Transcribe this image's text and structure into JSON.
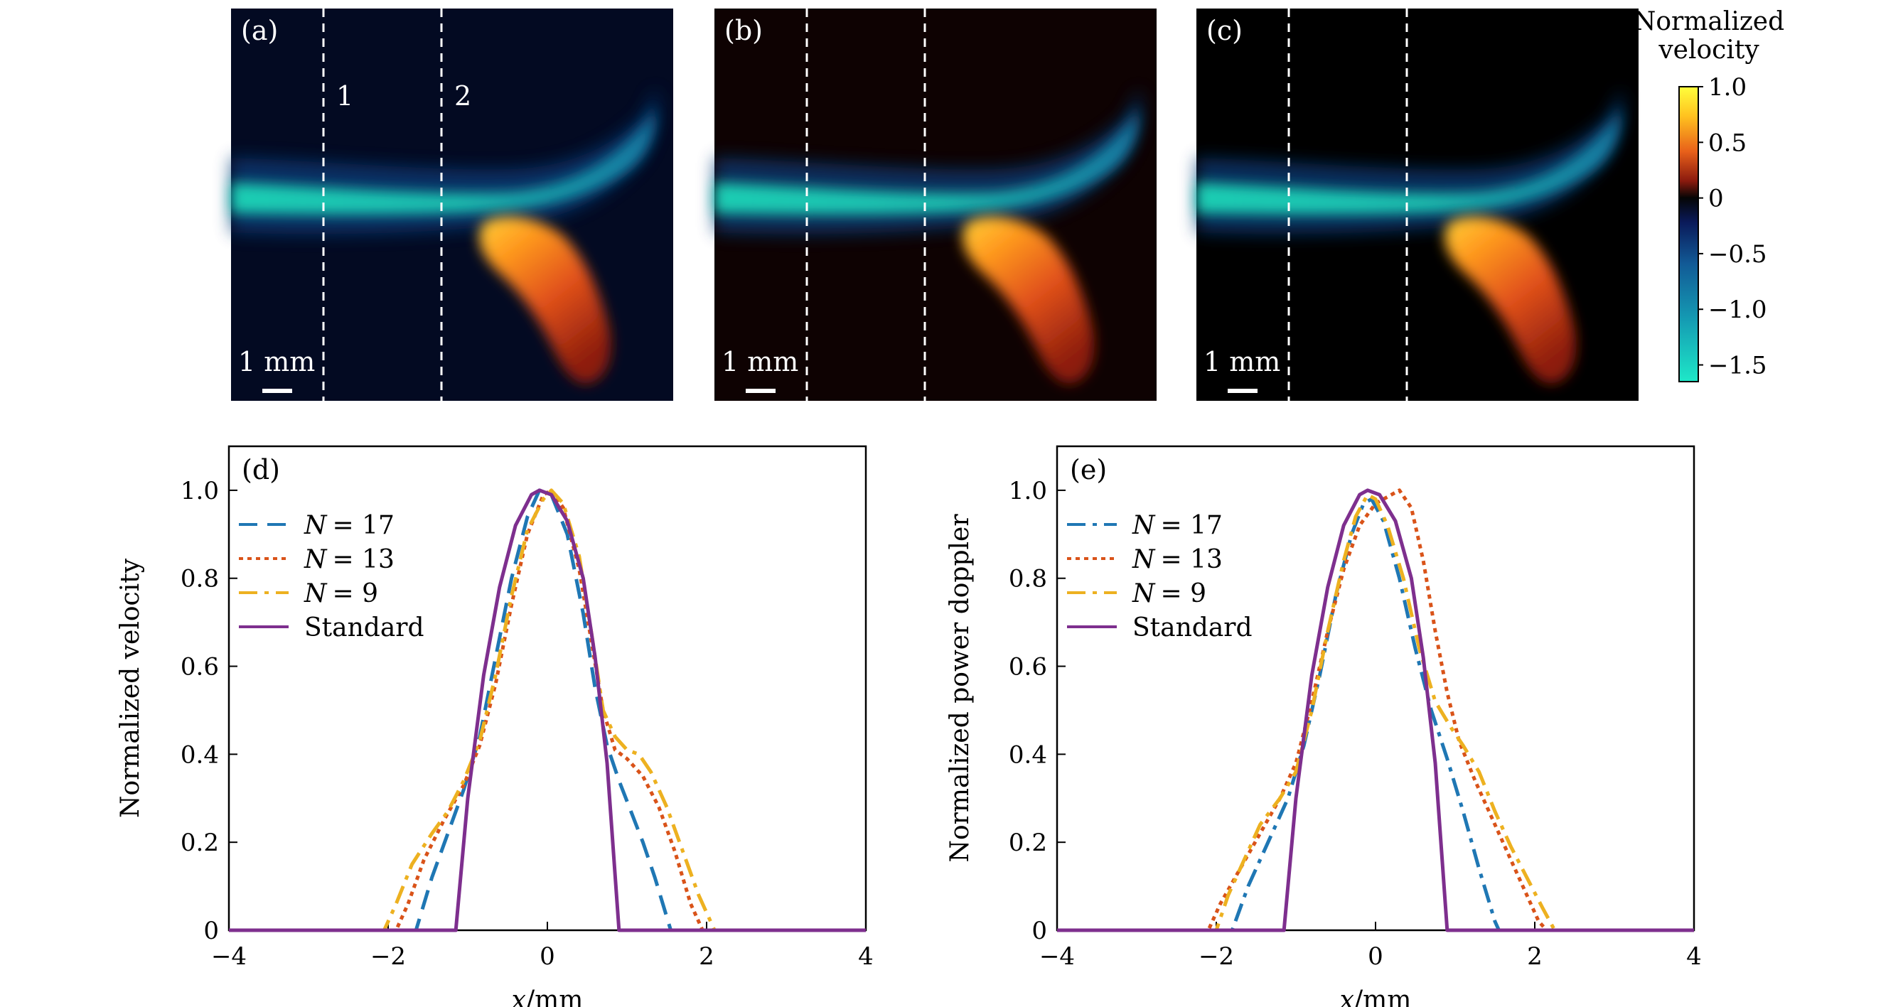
{
  "images": [
    {
      "label": "(a)",
      "bg": "#030a22",
      "line_labels": [
        "1",
        "2"
      ],
      "scale_label": "1 mm"
    },
    {
      "label": "(b)",
      "bg": "#0e0202",
      "line_labels": [],
      "scale_label": "1 mm"
    },
    {
      "label": "(c)",
      "bg": "#000000",
      "line_labels": [],
      "scale_label": "1 mm"
    }
  ],
  "colorbar": {
    "title_lines": [
      "Normalized",
      "velocity"
    ],
    "ticks": [
      "1.0",
      "0.5",
      "0",
      "−0.5",
      "−1.0",
      "−1.5"
    ],
    "tick_values": [
      1.0,
      0.5,
      0,
      -0.5,
      -1.0,
      -1.5
    ],
    "range": [
      -1.65,
      1.0
    ]
  },
  "colors": {
    "n17": "#1f77b4",
    "n13": "#d95319",
    "n9": "#edb120",
    "standard": "#7e2f8e"
  },
  "chart_data": [
    {
      "type": "line",
      "panel_label": "(d)",
      "xlabel_var": "x",
      "xlabel_unit": "/mm",
      "ylabel": "Normalized velocity",
      "xlim": [
        -4,
        4
      ],
      "ylim": [
        0,
        1.1
      ],
      "xticks": [
        -4,
        -2,
        0,
        2,
        4
      ],
      "yticks": [
        0,
        0.2,
        0.4,
        0.6,
        0.8,
        1.0
      ],
      "xtick_labels": [
        "−4",
        "−2",
        "0",
        "2",
        "4"
      ],
      "ytick_labels": [
        "0",
        "0.2",
        "0.4",
        "0.6",
        "0.8",
        "1.0"
      ],
      "legend_position": "top-left",
      "series": [
        {
          "name": "N = 17",
          "legend_var": "N",
          "legend_val": "= 17",
          "color_key": "n17",
          "style": "dash",
          "points": [
            [
              -4,
              0
            ],
            [
              -1.65,
              0
            ],
            [
              -1.45,
              0.12
            ],
            [
              -1.25,
              0.22
            ],
            [
              -1.05,
              0.32
            ],
            [
              -0.85,
              0.44
            ],
            [
              -0.65,
              0.62
            ],
            [
              -0.45,
              0.8
            ],
            [
              -0.25,
              0.94
            ],
            [
              -0.1,
              1.0
            ],
            [
              0.05,
              0.99
            ],
            [
              0.25,
              0.9
            ],
            [
              0.45,
              0.72
            ],
            [
              0.6,
              0.55
            ],
            [
              0.75,
              0.42
            ],
            [
              0.9,
              0.34
            ],
            [
              1.05,
              0.27
            ],
            [
              1.2,
              0.2
            ],
            [
              1.35,
              0.12
            ],
            [
              1.55,
              0
            ],
            [
              4,
              0
            ]
          ]
        },
        {
          "name": "N = 13",
          "legend_var": "N",
          "legend_val": "= 13",
          "color_key": "n13",
          "style": "dot",
          "points": [
            [
              -4,
              0
            ],
            [
              -1.9,
              0
            ],
            [
              -1.75,
              0.06
            ],
            [
              -1.55,
              0.16
            ],
            [
              -1.3,
              0.25
            ],
            [
              -1.05,
              0.33
            ],
            [
              -0.85,
              0.42
            ],
            [
              -0.65,
              0.56
            ],
            [
              -0.45,
              0.74
            ],
            [
              -0.25,
              0.9
            ],
            [
              -0.05,
              0.99
            ],
            [
              0.05,
              1.0
            ],
            [
              0.2,
              0.96
            ],
            [
              0.4,
              0.82
            ],
            [
              0.55,
              0.66
            ],
            [
              0.7,
              0.5
            ],
            [
              0.85,
              0.41
            ],
            [
              1.0,
              0.39
            ],
            [
              1.2,
              0.35
            ],
            [
              1.4,
              0.28
            ],
            [
              1.6,
              0.18
            ],
            [
              1.8,
              0.06
            ],
            [
              1.95,
              0
            ],
            [
              4,
              0
            ]
          ]
        },
        {
          "name": "N = 9",
          "legend_var": "N",
          "legend_val": "= 9",
          "color_key": "n9",
          "style": "dashdot",
          "points": [
            [
              -4,
              0
            ],
            [
              -2.05,
              0
            ],
            [
              -1.9,
              0.06
            ],
            [
              -1.7,
              0.15
            ],
            [
              -1.45,
              0.22
            ],
            [
              -1.25,
              0.27
            ],
            [
              -1.05,
              0.34
            ],
            [
              -0.85,
              0.43
            ],
            [
              -0.65,
              0.58
            ],
            [
              -0.45,
              0.76
            ],
            [
              -0.25,
              0.91
            ],
            [
              -0.05,
              0.98
            ],
            [
              0.05,
              1.0
            ],
            [
              0.2,
              0.97
            ],
            [
              0.4,
              0.85
            ],
            [
              0.55,
              0.68
            ],
            [
              0.7,
              0.5
            ],
            [
              0.85,
              0.44
            ],
            [
              1.0,
              0.41
            ],
            [
              1.15,
              0.4
            ],
            [
              1.3,
              0.36
            ],
            [
              1.5,
              0.28
            ],
            [
              1.7,
              0.18
            ],
            [
              1.9,
              0.08
            ],
            [
              2.1,
              0
            ],
            [
              4,
              0
            ]
          ]
        },
        {
          "name": "Standard",
          "color_key": "standard",
          "style": "solid",
          "points": [
            [
              -4,
              0
            ],
            [
              -1.15,
              0
            ],
            [
              -1.0,
              0.3
            ],
            [
              -0.8,
              0.58
            ],
            [
              -0.6,
              0.78
            ],
            [
              -0.4,
              0.92
            ],
            [
              -0.2,
              0.99
            ],
            [
              -0.1,
              1.0
            ],
            [
              0.05,
              0.99
            ],
            [
              0.25,
              0.93
            ],
            [
              0.45,
              0.8
            ],
            [
              0.6,
              0.62
            ],
            [
              0.75,
              0.38
            ],
            [
              0.9,
              0
            ],
            [
              4,
              0
            ]
          ]
        }
      ]
    },
    {
      "type": "line",
      "panel_label": "(e)",
      "xlabel_var": "x",
      "xlabel_unit": "/mm",
      "ylabel": "Normalized power doppler",
      "xlim": [
        -4,
        4
      ],
      "ylim": [
        0,
        1.1
      ],
      "xticks": [
        -4,
        -2,
        0,
        2,
        4
      ],
      "yticks": [
        0,
        0.2,
        0.4,
        0.6,
        0.8,
        1.0
      ],
      "xtick_labels": [
        "−4",
        "−2",
        "0",
        "2",
        "4"
      ],
      "ytick_labels": [
        "0",
        "0.2",
        "0.4",
        "0.6",
        "0.8",
        "1.0"
      ],
      "legend_position": "top-left",
      "series": [
        {
          "name": "N = 17",
          "legend_var": "N",
          "legend_val": "= 17",
          "color_key": "n17",
          "style": "dashdot",
          "points": [
            [
              -4,
              0
            ],
            [
              -1.8,
              0
            ],
            [
              -1.6,
              0.1
            ],
            [
              -1.35,
              0.2
            ],
            [
              -1.1,
              0.3
            ],
            [
              -0.9,
              0.42
            ],
            [
              -0.7,
              0.58
            ],
            [
              -0.5,
              0.76
            ],
            [
              -0.3,
              0.9
            ],
            [
              -0.15,
              0.97
            ],
            [
              -0.05,
              0.98
            ],
            [
              0.1,
              0.93
            ],
            [
              0.3,
              0.8
            ],
            [
              0.5,
              0.64
            ],
            [
              0.7,
              0.5
            ],
            [
              0.9,
              0.39
            ],
            [
              1.1,
              0.27
            ],
            [
              1.3,
              0.14
            ],
            [
              1.5,
              0.02
            ],
            [
              1.55,
              0
            ],
            [
              4,
              0
            ]
          ]
        },
        {
          "name": "N = 13",
          "legend_var": "N",
          "legend_val": "= 13",
          "color_key": "n13",
          "style": "dot",
          "points": [
            [
              -4,
              0
            ],
            [
              -2.1,
              0
            ],
            [
              -1.95,
              0.06
            ],
            [
              -1.7,
              0.14
            ],
            [
              -1.45,
              0.22
            ],
            [
              -1.2,
              0.3
            ],
            [
              -1.0,
              0.38
            ],
            [
              -0.8,
              0.52
            ],
            [
              -0.6,
              0.68
            ],
            [
              -0.4,
              0.82
            ],
            [
              -0.2,
              0.92
            ],
            [
              0.0,
              0.97
            ],
            [
              0.2,
              0.99
            ],
            [
              0.3,
              1.0
            ],
            [
              0.45,
              0.96
            ],
            [
              0.6,
              0.84
            ],
            [
              0.75,
              0.68
            ],
            [
              0.9,
              0.54
            ],
            [
              1.05,
              0.43
            ],
            [
              1.25,
              0.34
            ],
            [
              1.45,
              0.26
            ],
            [
              1.65,
              0.18
            ],
            [
              1.85,
              0.1
            ],
            [
              2.05,
              0.02
            ],
            [
              2.15,
              0
            ],
            [
              4,
              0
            ]
          ]
        },
        {
          "name": "N = 9",
          "legend_var": "N",
          "legend_val": "= 9",
          "color_key": "n9",
          "style": "dashdot",
          "points": [
            [
              -4,
              0
            ],
            [
              -2.0,
              0
            ],
            [
              -1.85,
              0.08
            ],
            [
              -1.65,
              0.16
            ],
            [
              -1.45,
              0.24
            ],
            [
              -1.2,
              0.3
            ],
            [
              -1.0,
              0.36
            ],
            [
              -0.8,
              0.5
            ],
            [
              -0.6,
              0.68
            ],
            [
              -0.4,
              0.84
            ],
            [
              -0.25,
              0.94
            ],
            [
              -0.1,
              0.99
            ],
            [
              0.0,
              0.98
            ],
            [
              0.15,
              0.92
            ],
            [
              0.35,
              0.8
            ],
            [
              0.55,
              0.64
            ],
            [
              0.75,
              0.52
            ],
            [
              0.95,
              0.46
            ],
            [
              1.1,
              0.42
            ],
            [
              1.3,
              0.36
            ],
            [
              1.5,
              0.27
            ],
            [
              1.7,
              0.19
            ],
            [
              1.9,
              0.12
            ],
            [
              2.1,
              0.05
            ],
            [
              2.25,
              0
            ],
            [
              4,
              0
            ]
          ]
        },
        {
          "name": "Standard",
          "color_key": "standard",
          "style": "solid",
          "points": [
            [
              -4,
              0
            ],
            [
              -1.15,
              0
            ],
            [
              -1.0,
              0.3
            ],
            [
              -0.8,
              0.58
            ],
            [
              -0.6,
              0.78
            ],
            [
              -0.4,
              0.92
            ],
            [
              -0.2,
              0.99
            ],
            [
              -0.1,
              1.0
            ],
            [
              0.05,
              0.99
            ],
            [
              0.25,
              0.93
            ],
            [
              0.45,
              0.8
            ],
            [
              0.6,
              0.62
            ],
            [
              0.75,
              0.38
            ],
            [
              0.9,
              0
            ],
            [
              4,
              0
            ]
          ]
        }
      ]
    }
  ]
}
